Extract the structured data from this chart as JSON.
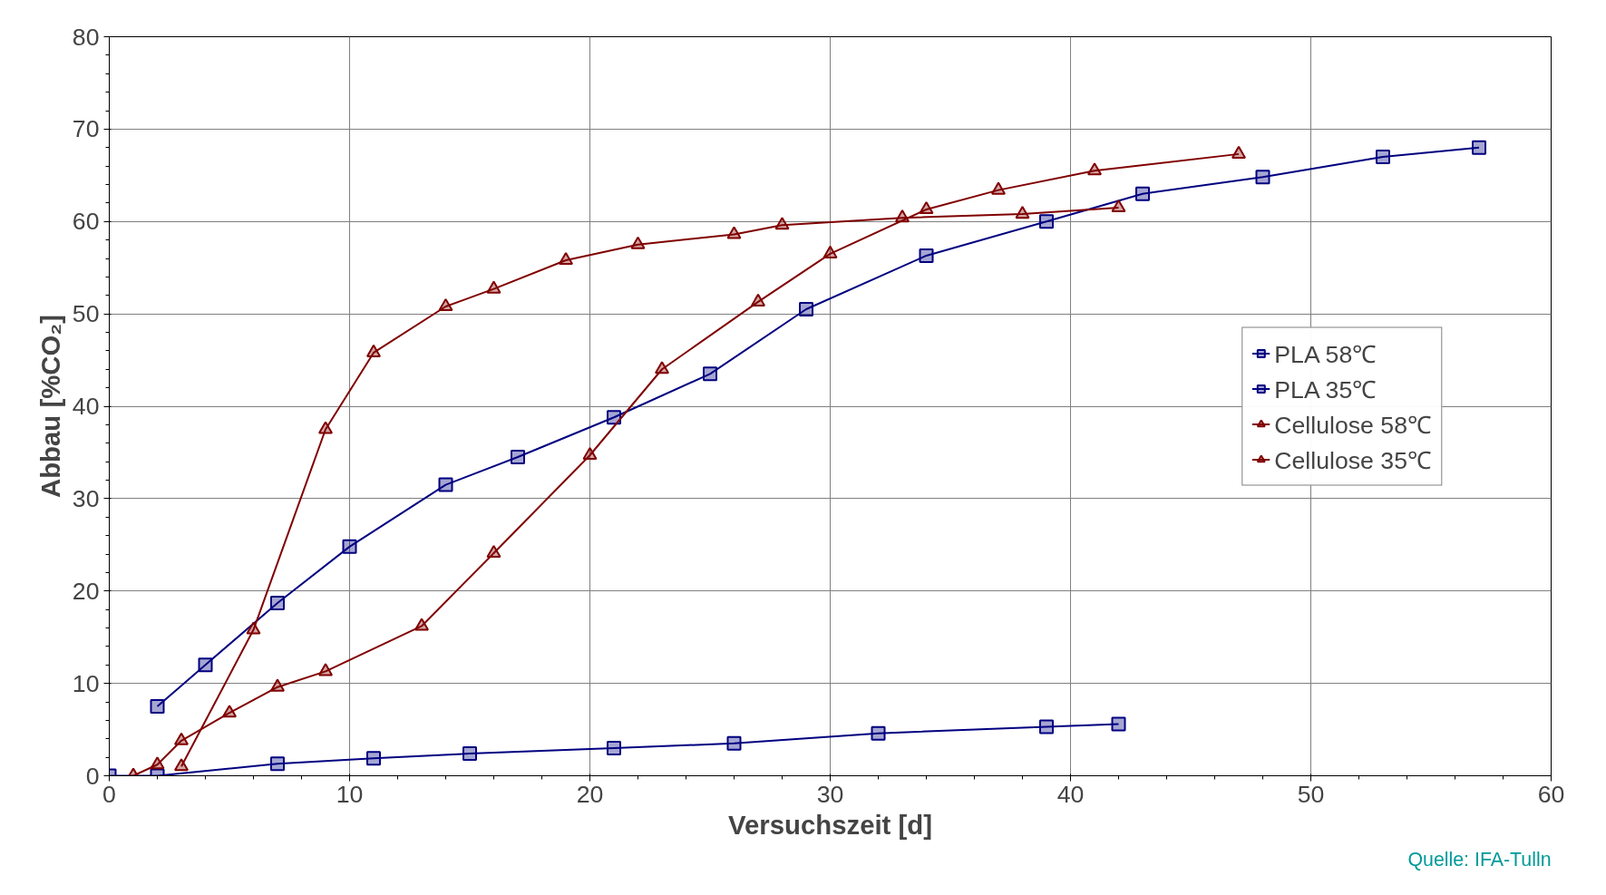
{
  "chart_data": {
    "type": "line",
    "xlabel": "Versuchszeit [d]",
    "ylabel": "Abbau [%CO₂]",
    "xlim": [
      0,
      60
    ],
    "xticks": [
      0,
      10,
      20,
      30,
      40,
      50,
      60
    ],
    "ylim": [
      0,
      80
    ],
    "yticks": [
      0,
      10,
      20,
      30,
      40,
      50,
      60,
      70,
      80
    ],
    "grid": true,
    "legend": "right",
    "line_style": "solid",
    "annotations": [
      "Quelle: IFA-Tulln"
    ],
    "series": [
      {
        "name": "PLA 58℃",
        "color": "#000080",
        "marker": "square",
        "x": [
          2,
          4,
          7,
          10,
          14,
          17,
          21,
          25,
          29,
          34,
          39,
          43,
          48,
          53,
          57
        ],
        "values": [
          7.5,
          12,
          18.7,
          24.8,
          31.5,
          34.5,
          38.8,
          43.5,
          50.5,
          56.3,
          60,
          63,
          64.8,
          67,
          68
        ]
      },
      {
        "name": "PLA 35℃",
        "color": "#000080",
        "marker": "square",
        "x": [
          0,
          2,
          7,
          11,
          15,
          21,
          26,
          32,
          39,
          42
        ],
        "values": [
          0,
          0,
          1.3,
          1.9,
          2.4,
          3,
          3.5,
          4.6,
          5.3,
          5.6
        ]
      },
      {
        "name": "Cellulose 58℃",
        "color": "#800000",
        "marker": "triangle",
        "x": [
          1,
          2,
          3,
          5,
          7,
          9,
          13,
          16,
          20,
          23,
          27,
          30,
          34,
          37,
          41,
          47
        ],
        "values": [
          0,
          1.2,
          3.8,
          6.8,
          9.6,
          11.3,
          16.2,
          24.1,
          34.7,
          44,
          51.3,
          56.5,
          61.3,
          63.4,
          65.5,
          67.3
        ]
      },
      {
        "name": "Cellulose 35℃",
        "color": "#800000",
        "marker": "triangle",
        "x": [
          3,
          6,
          9,
          11,
          14,
          16,
          19,
          22,
          26,
          28,
          33,
          38,
          42
        ],
        "values": [
          1,
          15.8,
          37.5,
          45.8,
          50.8,
          52.7,
          55.8,
          57.5,
          58.6,
          59.6,
          60.4,
          60.8,
          61.5
        ]
      }
    ]
  }
}
